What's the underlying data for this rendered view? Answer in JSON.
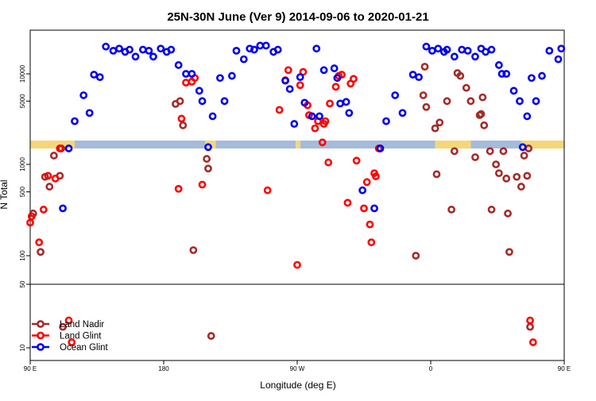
{
  "chart_data": {
    "type": "scatter",
    "title": "25N-30N June (Ver 9)   2014-09-06 to 2020-01-21",
    "xlabel": "Longitude (deg E)",
    "ylabel": "N Total",
    "x_range": [
      90,
      450
    ],
    "x_ticks": [
      {
        "value": 90,
        "label": "90 E"
      },
      {
        "value": 180,
        "label": "180"
      },
      {
        "value": 270,
        "label": "90 W"
      },
      {
        "value": 360,
        "label": "0"
      },
      {
        "value": 450,
        "label": "90 E"
      },
      {
        "value": 540,
        "label": "180"
      }
    ],
    "x_ticks_note": "longitude wraps: 90E..180..90W..0..90E..180",
    "y_scale": "log",
    "y_ticks": [
      {
        "value": 10,
        "label": "10"
      },
      {
        "value": 50,
        "label": "50"
      },
      {
        "value": 100,
        "label": "100"
      },
      {
        "value": 500,
        "label": "500"
      },
      {
        "value": 1000,
        "label": "1000"
      },
      {
        "value": 5000,
        "label": "5000"
      },
      {
        "value": 10000,
        "label": "10000"
      }
    ],
    "legend": {
      "placement": "bottom-left",
      "entries": [
        "Land Nadir",
        "Land Glint",
        "Ocean Glint"
      ]
    },
    "colors": {
      "land_nadir": "#a52a2a",
      "land_glint": "#ff0000",
      "ocean_glint": "#0000ee",
      "land_band": "#f5d77a",
      "ocean_band": "#a4bcd9"
    },
    "surface_band": {
      "land_ranges": [
        [
          90,
          120
        ],
        [
          208,
          215
        ],
        [
          269,
          272
        ],
        [
          363,
          387
        ],
        [
          421,
          450
        ]
      ],
      "ocean_ranges": [
        [
          120,
          208
        ],
        [
          215,
          269
        ],
        [
          272,
          363
        ],
        [
          387,
          421
        ],
        [
          450,
          540
        ]
      ]
    },
    "series": [
      {
        "name": "Land Nadir",
        "points": [
          [
            92,
            290
          ],
          [
            97,
            110
          ],
          [
            100,
            730
          ],
          [
            103,
            570
          ],
          [
            106,
            1250
          ],
          [
            110,
            750
          ],
          [
            111,
            1500
          ],
          [
            112,
            17
          ],
          [
            188,
            4650
          ],
          [
            191,
            5000
          ],
          [
            193,
            2700
          ],
          [
            200,
            115
          ],
          [
            209,
            1150
          ],
          [
            210,
            900
          ],
          [
            212,
            13.5
          ],
          [
            350,
            100
          ],
          [
            355,
            5800
          ],
          [
            356,
            12000
          ],
          [
            357,
            4300
          ],
          [
            363,
            2500
          ],
          [
            364,
            780
          ],
          [
            366,
            2900
          ],
          [
            371,
            5000
          ],
          [
            374,
            320
          ],
          [
            376,
            1400
          ],
          [
            378,
            10200
          ],
          [
            380,
            9500
          ],
          [
            384,
            7000
          ],
          [
            387,
            5000
          ],
          [
            390,
            1200
          ],
          [
            393,
            3500
          ],
          [
            394,
            3600
          ],
          [
            395,
            5500
          ],
          [
            396,
            2700
          ],
          [
            400,
            1400
          ],
          [
            401,
            320
          ],
          [
            404,
            1000
          ],
          [
            406,
            800
          ],
          [
            409,
            1400
          ],
          [
            411,
            700
          ],
          [
            412,
            290
          ],
          [
            413,
            110
          ],
          [
            418,
            730
          ],
          [
            421,
            570
          ],
          [
            423,
            1250
          ],
          [
            425,
            750
          ],
          [
            426,
            1500
          ],
          [
            427,
            17
          ]
        ]
      },
      {
        "name": "Land Glint",
        "points": [
          [
            90,
            230
          ],
          [
            91,
            270
          ],
          [
            96,
            140
          ],
          [
            99,
            320
          ],
          [
            102,
            750
          ],
          [
            107,
            700
          ],
          [
            110,
            1500
          ],
          [
            116,
            20
          ],
          [
            118,
            11.5
          ],
          [
            190,
            540
          ],
          [
            192,
            3200
          ],
          [
            195,
            8000
          ],
          [
            199,
            8200
          ],
          [
            201,
            9000
          ],
          [
            206,
            600
          ],
          [
            250,
            520
          ],
          [
            258,
            4000
          ],
          [
            262,
            8500
          ],
          [
            264,
            11000
          ],
          [
            270,
            80
          ],
          [
            272,
            7500
          ],
          [
            274,
            10500
          ],
          [
            277,
            4500
          ],
          [
            278,
            3500
          ],
          [
            282,
            2500
          ],
          [
            284,
            3000
          ],
          [
            287,
            1750
          ],
          [
            288,
            2800
          ],
          [
            289,
            3000
          ],
          [
            291,
            1050
          ],
          [
            292,
            4700
          ],
          [
            296,
            7200
          ],
          [
            298,
            9500
          ],
          [
            300,
            9800
          ],
          [
            304,
            380
          ],
          [
            306,
            7800
          ],
          [
            308,
            8800
          ],
          [
            310,
            1100
          ],
          [
            315,
            330
          ],
          [
            317,
            640
          ],
          [
            319,
            220
          ],
          [
            320,
            140
          ],
          [
            322,
            800
          ],
          [
            323,
            740
          ],
          [
            325,
            1500
          ],
          [
            427,
            20
          ],
          [
            429,
            11.5
          ]
        ]
      },
      {
        "name": "Ocean Glint",
        "points": [
          [
            112,
            330
          ],
          [
            116,
            1500
          ],
          [
            120,
            3000
          ],
          [
            126,
            5800
          ],
          [
            130,
            3700
          ],
          [
            133,
            9800
          ],
          [
            137,
            9200
          ],
          [
            141,
            20000
          ],
          [
            146,
            18000
          ],
          [
            150,
            19000
          ],
          [
            154,
            17500
          ],
          [
            157,
            18500
          ],
          [
            161,
            15500
          ],
          [
            166,
            18500
          ],
          [
            170,
            18000
          ],
          [
            173,
            15500
          ],
          [
            178,
            19000
          ],
          [
            182,
            17500
          ],
          [
            185,
            18500
          ],
          [
            190,
            12500
          ],
          [
            195,
            10000
          ],
          [
            199,
            10000
          ],
          [
            204,
            6500
          ],
          [
            206,
            5000
          ],
          [
            210,
            1550
          ],
          [
            213,
            3400
          ],
          [
            218,
            9000
          ],
          [
            221,
            5000
          ],
          [
            226,
            9500
          ],
          [
            229,
            18000
          ],
          [
            234,
            14500
          ],
          [
            238,
            19000
          ],
          [
            241,
            18500
          ],
          [
            245,
            20500
          ],
          [
            249,
            20500
          ],
          [
            254,
            17500
          ],
          [
            257,
            18500
          ],
          [
            262,
            8400
          ],
          [
            265,
            6800
          ],
          [
            268,
            2800
          ],
          [
            272,
            9200
          ],
          [
            275,
            4800
          ],
          [
            280,
            3400
          ],
          [
            283,
            19000
          ],
          [
            285,
            3400
          ],
          [
            288,
            11000
          ],
          [
            295,
            11500
          ],
          [
            297,
            9000
          ],
          [
            299,
            4700
          ],
          [
            303,
            4900
          ],
          [
            305,
            3700
          ],
          [
            314,
            520
          ],
          [
            322,
            330
          ],
          [
            326,
            1500
          ],
          [
            330,
            3000
          ],
          [
            336,
            5800
          ],
          [
            341,
            3700
          ],
          [
            348,
            9800
          ],
          [
            352,
            9200
          ],
          [
            357,
            20000
          ],
          [
            361,
            18000
          ],
          [
            365,
            19000
          ],
          [
            369,
            17500
          ],
          [
            371,
            18500
          ],
          [
            376,
            15500
          ],
          [
            381,
            18500
          ],
          [
            385,
            18000
          ],
          [
            390,
            15500
          ],
          [
            394,
            19000
          ],
          [
            397,
            17500
          ],
          [
            401,
            18500
          ],
          [
            406,
            12500
          ],
          [
            408,
            10000
          ],
          [
            411,
            10000
          ],
          [
            416,
            6500
          ],
          [
            420,
            5000
          ],
          [
            422,
            1550
          ],
          [
            425,
            3400
          ],
          [
            428,
            9000
          ],
          [
            431,
            5000
          ],
          [
            435,
            9500
          ],
          [
            440,
            18000
          ],
          [
            446,
            14500
          ],
          [
            448,
            19000
          ],
          [
            452,
            18500
          ],
          [
            456,
            20500
          ]
        ]
      }
    ]
  }
}
